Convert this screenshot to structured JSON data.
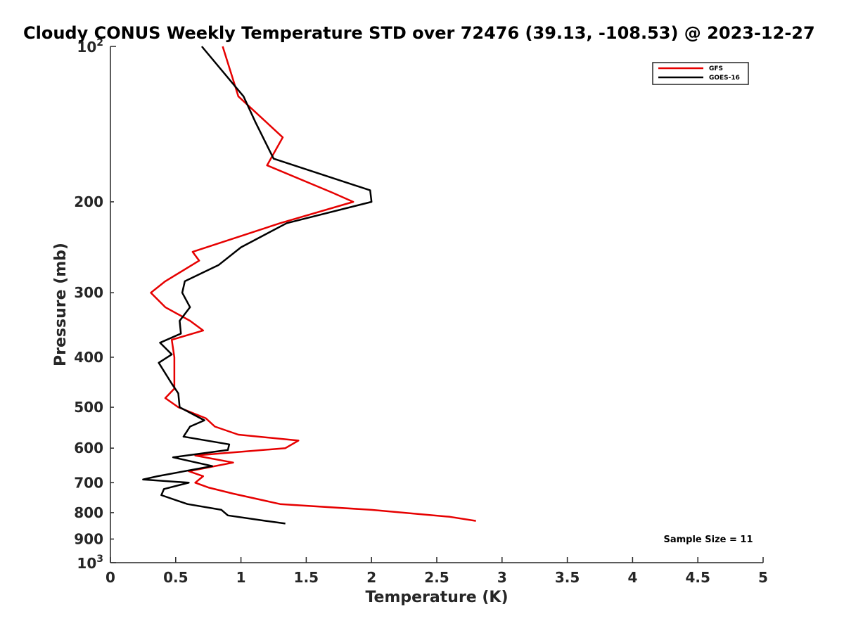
{
  "chart_data": {
    "type": "line",
    "title": "Cloudy CONUS Weekly Temperature STD over 72476 (39.13, -108.53) @ 2023-12-27",
    "xlabel": "Temperature (K)",
    "ylabel": "Pressure (mb)",
    "xlim": [
      0,
      5
    ],
    "ylim": [
      100,
      1000
    ],
    "y_scale": "log",
    "y_reversed": true,
    "grid": false,
    "legend_position": "top-right",
    "x_ticks": [
      {
        "value": 0,
        "label": "0"
      },
      {
        "value": 0.5,
        "label": "0.5"
      },
      {
        "value": 1,
        "label": "1"
      },
      {
        "value": 1.5,
        "label": "1.5"
      },
      {
        "value": 2,
        "label": "2"
      },
      {
        "value": 2.5,
        "label": "2.5"
      },
      {
        "value": 3,
        "label": "3"
      },
      {
        "value": 3.5,
        "label": "3.5"
      },
      {
        "value": 4,
        "label": "4"
      },
      {
        "value": 4.5,
        "label": "4.5"
      },
      {
        "value": 5,
        "label": "5"
      }
    ],
    "y_ticks": [
      {
        "value": 100,
        "base": "10",
        "exp": "2"
      },
      {
        "value": 200,
        "label": "200"
      },
      {
        "value": 300,
        "label": "300"
      },
      {
        "value": 400,
        "label": "400"
      },
      {
        "value": 500,
        "label": "500"
      },
      {
        "value": 600,
        "label": "600"
      },
      {
        "value": 700,
        "label": "700"
      },
      {
        "value": 800,
        "label": "800"
      },
      {
        "value": 900,
        "label": "900"
      },
      {
        "value": 1000,
        "base": "10",
        "exp": "3"
      }
    ],
    "annotation": "Sample Size = 11",
    "series": [
      {
        "name": "GFS",
        "color": "#e60000",
        "points": [
          [
            0.86,
            100
          ],
          [
            0.98,
            125
          ],
          [
            1.32,
            150
          ],
          [
            1.2,
            170
          ],
          [
            1.7,
            192
          ],
          [
            1.86,
            200
          ],
          [
            1.3,
            220
          ],
          [
            0.63,
            250
          ],
          [
            0.68,
            260
          ],
          [
            0.42,
            285
          ],
          [
            0.31,
            300
          ],
          [
            0.42,
            320
          ],
          [
            0.61,
            340
          ],
          [
            0.71,
            355
          ],
          [
            0.47,
            370
          ],
          [
            0.49,
            400
          ],
          [
            0.49,
            460
          ],
          [
            0.42,
            480
          ],
          [
            0.52,
            500
          ],
          [
            0.73,
            525
          ],
          [
            0.8,
            545
          ],
          [
            0.98,
            565
          ],
          [
            1.44,
            580
          ],
          [
            1.34,
            600
          ],
          [
            0.65,
            620
          ],
          [
            0.94,
            640
          ],
          [
            0.6,
            665
          ],
          [
            0.71,
            680
          ],
          [
            0.65,
            700
          ],
          [
            0.75,
            715
          ],
          [
            0.94,
            735
          ],
          [
            1.3,
            770
          ],
          [
            2.0,
            790
          ],
          [
            2.6,
            815
          ],
          [
            2.8,
            830
          ]
        ]
      },
      {
        "name": "GOES-16",
        "color": "#000000",
        "points": [
          [
            0.7,
            100
          ],
          [
            1.02,
            125
          ],
          [
            1.11,
            140
          ],
          [
            1.25,
            165
          ],
          [
            1.99,
            190
          ],
          [
            2.0,
            200
          ],
          [
            1.35,
            220
          ],
          [
            1.0,
            245
          ],
          [
            0.83,
            265
          ],
          [
            0.57,
            285
          ],
          [
            0.55,
            300
          ],
          [
            0.61,
            320
          ],
          [
            0.53,
            340
          ],
          [
            0.54,
            360
          ],
          [
            0.38,
            375
          ],
          [
            0.47,
            395
          ],
          [
            0.37,
            410
          ],
          [
            0.47,
            450
          ],
          [
            0.52,
            470
          ],
          [
            0.53,
            500
          ],
          [
            0.72,
            530
          ],
          [
            0.61,
            545
          ],
          [
            0.56,
            570
          ],
          [
            0.91,
            590
          ],
          [
            0.9,
            605
          ],
          [
            0.48,
            625
          ],
          [
            0.78,
            650
          ],
          [
            0.36,
            680
          ],
          [
            0.25,
            690
          ],
          [
            0.6,
            700
          ],
          [
            0.41,
            720
          ],
          [
            0.39,
            740
          ],
          [
            0.59,
            770
          ],
          [
            0.85,
            790
          ],
          [
            0.9,
            810
          ],
          [
            1.19,
            830
          ],
          [
            1.34,
            840
          ]
        ]
      }
    ]
  }
}
